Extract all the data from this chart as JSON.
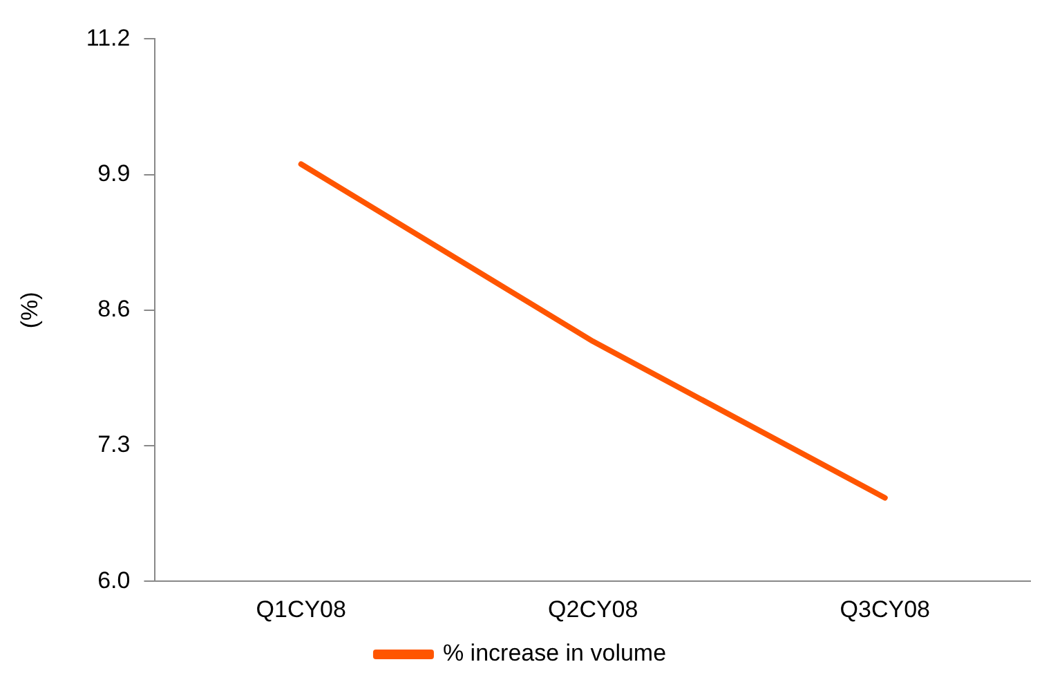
{
  "chart_data": {
    "type": "line",
    "ylabel": "(%)",
    "categories": [
      "Q1CY08",
      "Q2CY08",
      "Q3CY08"
    ],
    "series": [
      {
        "name": "% increase in volume",
        "color": "#ff5500",
        "values": [
          10.0,
          8.3,
          6.8
        ]
      }
    ],
    "ylim": [
      6.0,
      11.2
    ],
    "yticks": [
      {
        "value": 6.0,
        "label": "6.0"
      },
      {
        "value": 7.3,
        "label": "7.3"
      },
      {
        "value": 8.6,
        "label": "8.6"
      },
      {
        "value": 9.9,
        "label": "9.9"
      },
      {
        "value": 11.2,
        "label": "11.2"
      }
    ],
    "grid": false,
    "legend": "bottom",
    "marker": "none",
    "line_style": "solid"
  }
}
